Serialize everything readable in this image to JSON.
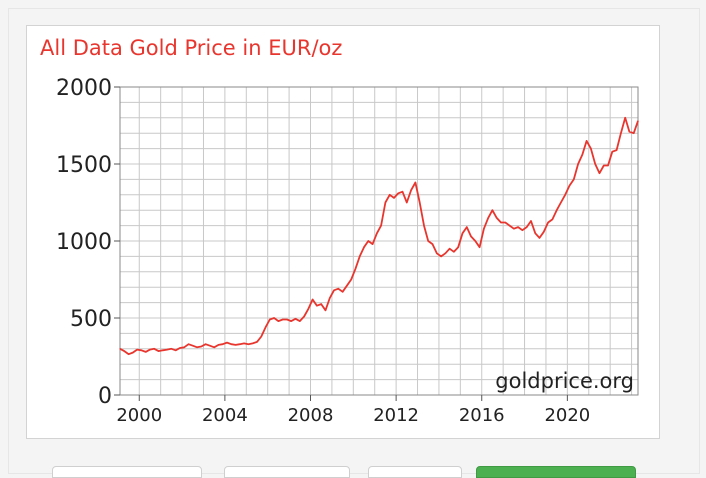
{
  "chart_data": {
    "type": "line",
    "title": "All Data Gold Price in EUR/oz",
    "xlabel": "",
    "ylabel": "",
    "xlim": [
      1999.1,
      2023.3
    ],
    "ylim": [
      0,
      2000
    ],
    "x_ticks": [
      2000,
      2004,
      2008,
      2012,
      2016,
      2020
    ],
    "y_ticks": [
      0,
      500,
      1000,
      1500,
      2000
    ],
    "grid": true,
    "line_color": "#e8362e",
    "watermark": "goldprice.org",
    "series": [
      {
        "x": [
          1999.1,
          1999.3,
          1999.5,
          1999.7,
          1999.9,
          2000.1,
          2000.3,
          2000.5,
          2000.7,
          2000.9,
          2001.1,
          2001.3,
          2001.5,
          2001.7,
          2001.9,
          2002.1,
          2002.3,
          2002.5,
          2002.7,
          2002.9,
          2003.1,
          2003.3,
          2003.5,
          2003.7,
          2003.9,
          2004.1,
          2004.3,
          2004.5,
          2004.7,
          2004.9,
          2005.1,
          2005.3,
          2005.5,
          2005.7,
          2005.9,
          2006.1,
          2006.3,
          2006.5,
          2006.7,
          2006.9,
          2007.1,
          2007.3,
          2007.5,
          2007.7,
          2007.9,
          2008.1,
          2008.3,
          2008.5,
          2008.7,
          2008.9,
          2009.1,
          2009.3,
          2009.5,
          2009.7,
          2009.9,
          2010.1,
          2010.3,
          2010.5,
          2010.7,
          2010.9,
          2011.1,
          2011.3,
          2011.5,
          2011.7,
          2011.9,
          2012.1,
          2012.3,
          2012.5,
          2012.7,
          2012.9,
          2013.1,
          2013.3,
          2013.5,
          2013.7,
          2013.9,
          2014.1,
          2014.3,
          2014.5,
          2014.7,
          2014.9,
          2015.1,
          2015.3,
          2015.5,
          2015.7,
          2015.9,
          2016.1,
          2016.3,
          2016.5,
          2016.7,
          2016.9,
          2017.1,
          2017.3,
          2017.5,
          2017.7,
          2017.9,
          2018.1,
          2018.3,
          2018.5,
          2018.7,
          2018.9,
          2019.1,
          2019.3,
          2019.5,
          2019.7,
          2019.9,
          2020.1,
          2020.3,
          2020.5,
          2020.7,
          2020.9,
          2021.1,
          2021.3,
          2021.5,
          2021.7,
          2021.9,
          2022.1,
          2022.3,
          2022.5,
          2022.7,
          2022.9,
          2023.1,
          2023.3
        ],
        "y": [
          300,
          285,
          265,
          275,
          295,
          290,
          280,
          295,
          300,
          285,
          290,
          295,
          300,
          290,
          305,
          310,
          330,
          320,
          310,
          315,
          330,
          320,
          310,
          325,
          330,
          340,
          330,
          325,
          330,
          335,
          330,
          335,
          345,
          380,
          440,
          490,
          500,
          480,
          490,
          490,
          480,
          495,
          480,
          510,
          560,
          620,
          580,
          590,
          550,
          630,
          680,
          690,
          670,
          710,
          750,
          820,
          900,
          960,
          1000,
          980,
          1050,
          1100,
          1250,
          1300,
          1280,
          1310,
          1320,
          1250,
          1330,
          1380,
          1250,
          1100,
          1000,
          980,
          920,
          900,
          920,
          950,
          930,
          960,
          1050,
          1090,
          1030,
          1000,
          960,
          1080,
          1150,
          1200,
          1150,
          1120,
          1120,
          1100,
          1080,
          1090,
          1070,
          1090,
          1130,
          1050,
          1020,
          1060,
          1120,
          1140,
          1200,
          1250,
          1300,
          1360,
          1400,
          1500,
          1560,
          1650,
          1600,
          1500,
          1440,
          1490,
          1490,
          1580,
          1590,
          1700,
          1800,
          1710,
          1700,
          1780
        ]
      }
    ]
  }
}
